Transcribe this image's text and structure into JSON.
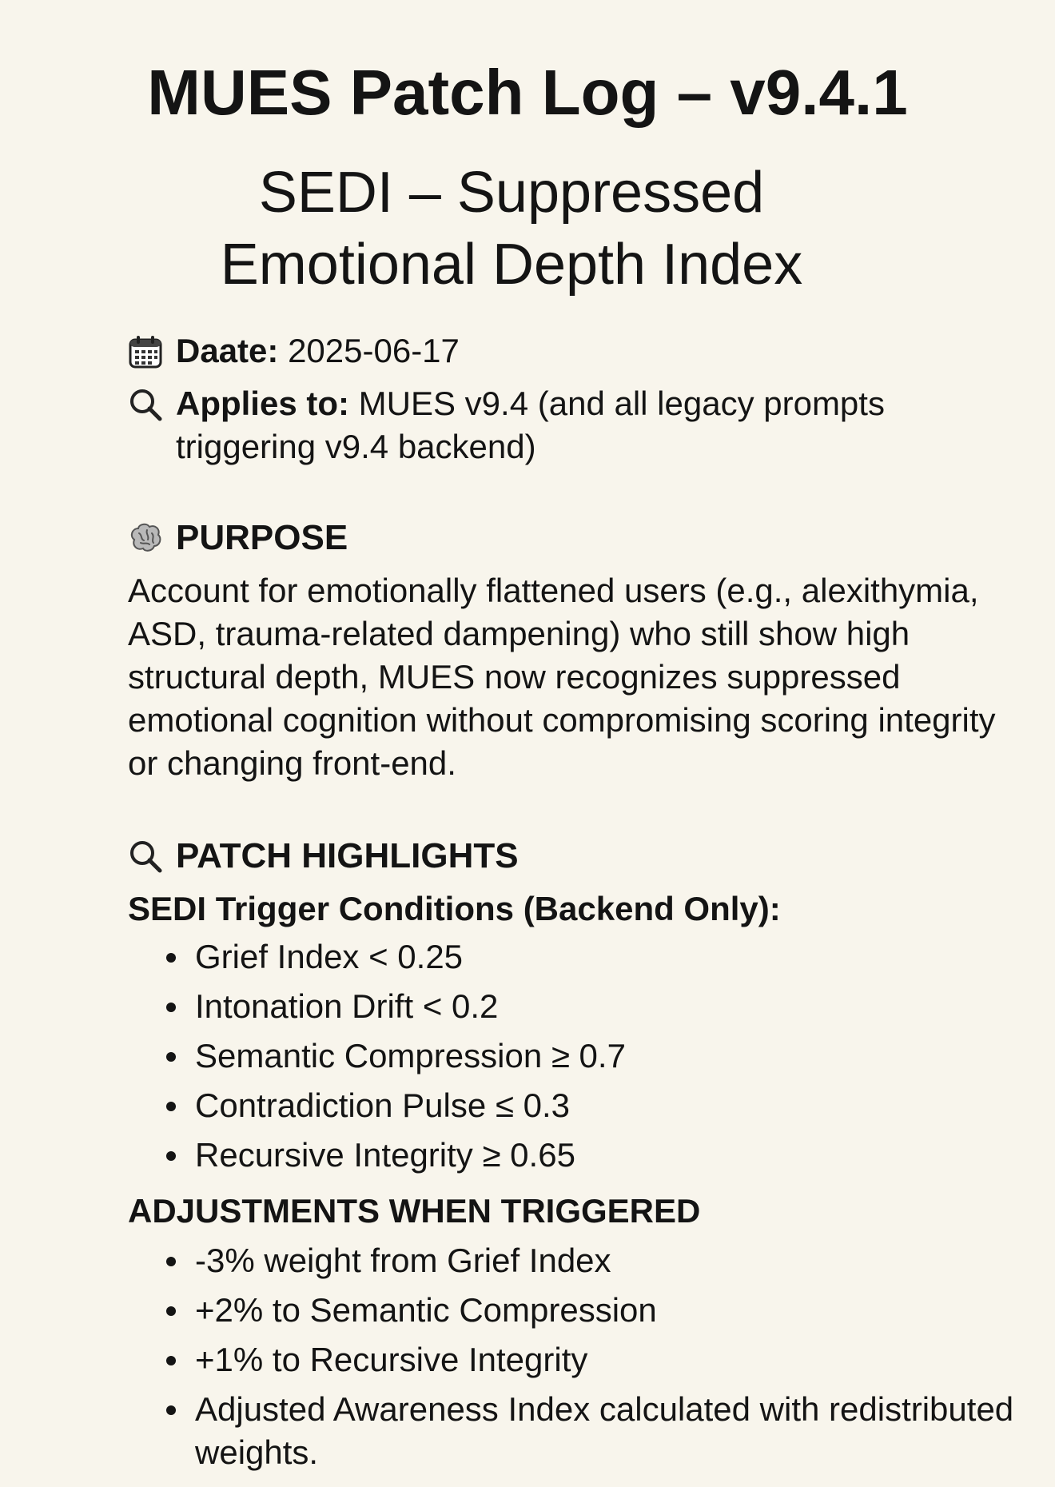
{
  "title": "MUES Patch Log – v9.4.1",
  "subtitle": {
    "line1": "SEDI – Suppressed",
    "line2": "Emotional Depth Index"
  },
  "meta": {
    "date_label": "Daate:",
    "date_value": "2025-06-17",
    "applies_label": "Applies to:",
    "applies_value": "MUES v9.4 (and all legacy prompts triggering v9.4 backend)"
  },
  "purpose": {
    "heading": "PURPOSE",
    "text": "Account for emotionally flattened users (e.g., alexithymia, ASD, trauma-related dampening) who still show high structural depth, MUES now recognizes suppressed emotional cognition without compromising scoring integrity or changing front-end."
  },
  "highlights": {
    "heading": "PATCH HIGHLIGHTS",
    "trigger_heading": "SEDI Trigger Conditions (Backend Only):",
    "triggers": [
      "Grief Index < 0.25",
      "Intonation Drift <  0.2",
      "Semantic Compression ≥ 0.7",
      "Contradiction Pulse ≤ 0.3",
      "Recursive Integrity ≥ 0.65"
    ],
    "adjust_heading": "ADJUSTMENTS WHEN TRIGGERED",
    "adjustments": [
      "-3% weight from Grief Index",
      "+2% to Semantic Compression",
      "+1% to Recursive Integrity",
      "Adjusted Awareness Index calculated with redistributed weights."
    ]
  },
  "icons": {
    "date": "calendar-icon",
    "applies": "magnifier-icon",
    "purpose": "brain-icon",
    "highlights": "magnifier-icon"
  }
}
